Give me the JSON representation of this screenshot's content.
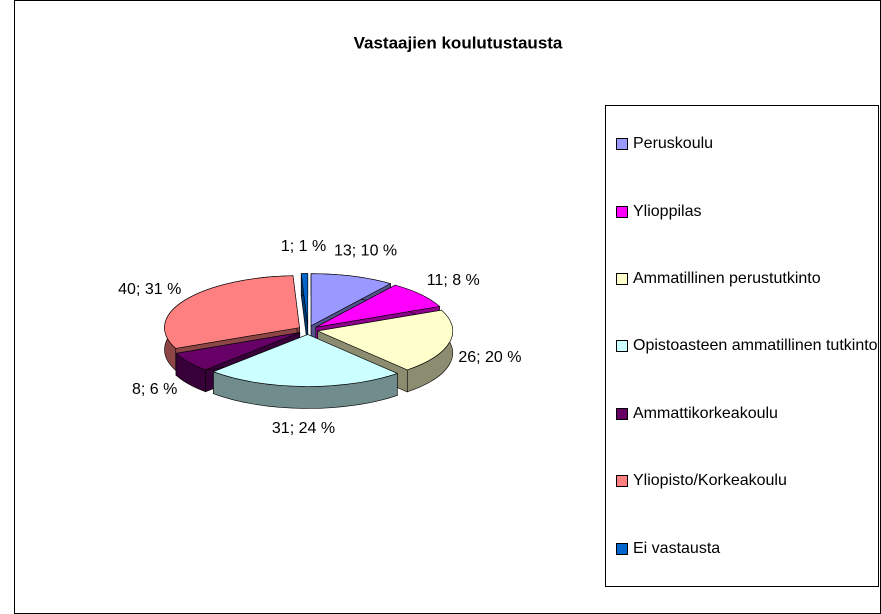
{
  "chart_data": {
    "type": "pie",
    "title": "Vastaajien koulutustausta",
    "categories": [
      "Peruskoulu",
      "Ylioppilas",
      "Ammatillinen perustutkinto",
      "Opistoasteen ammatillinen tutkinto",
      "Ammattikorkeakoulu",
      "Yliopisto/Korkeakoulu",
      "Ei vastausta"
    ],
    "values": [
      13,
      11,
      26,
      31,
      8,
      40,
      1
    ],
    "value_labels": [
      "13; 10 %",
      "11; 8 %",
      "26; 20 %",
      "31; 24 %",
      "8; 6 %",
      "40; 31 %",
      "1; 1 %"
    ],
    "colors": [
      "#9999ff",
      "#ff00ff",
      "#ffffcc",
      "#ccffff",
      "#660066",
      "#ff8080",
      "#0066cc"
    ],
    "legend": "right"
  }
}
